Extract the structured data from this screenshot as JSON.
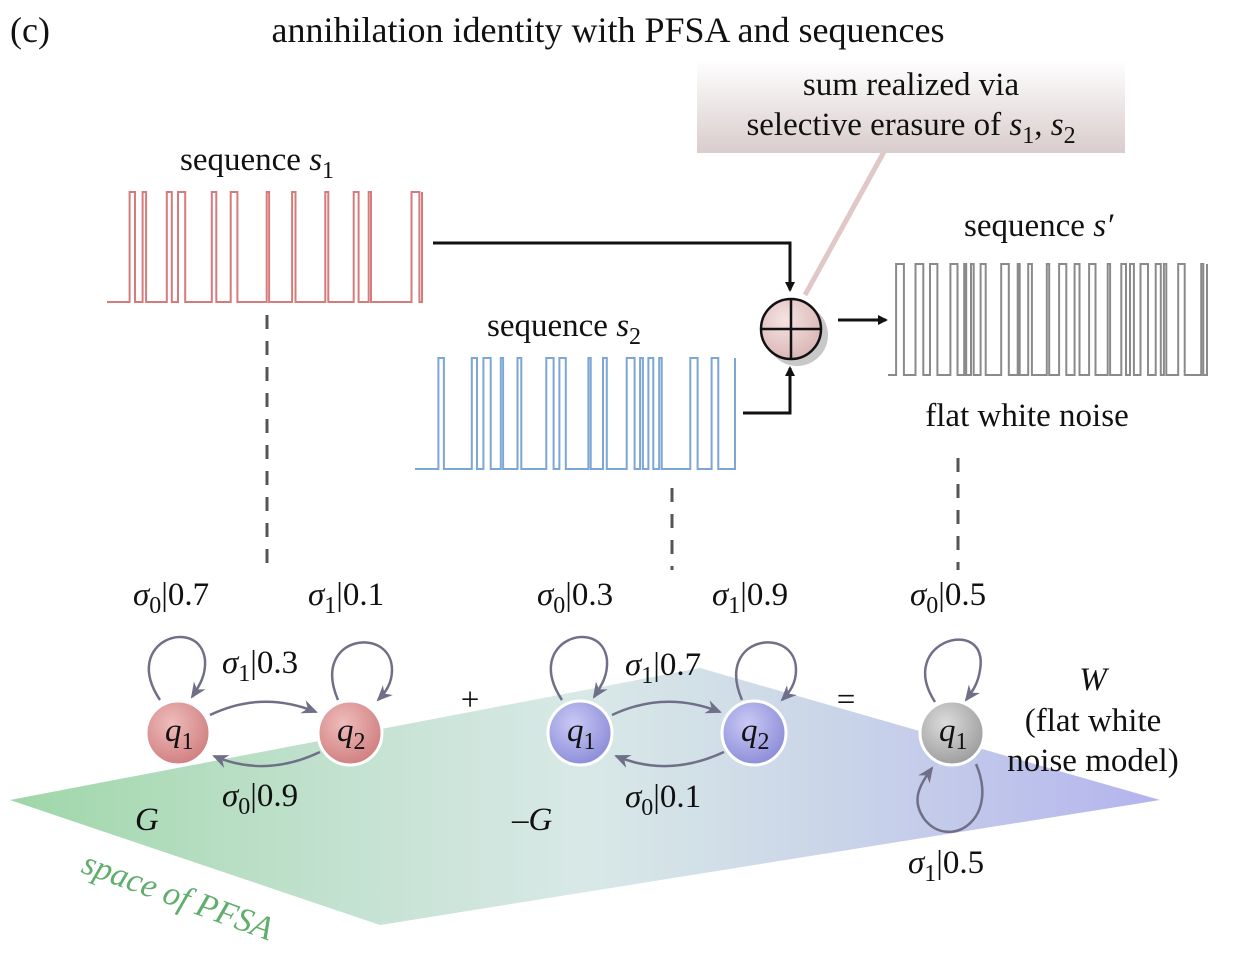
{
  "panel": {
    "label": "(c)",
    "title": "annihilation identity with PFSA and sequences"
  },
  "callout": {
    "line1": "sum realized via",
    "line2_prefix": "selective erasure of ",
    "var_a": "s",
    "var_a_sub": "1",
    "sep": ", ",
    "var_b": "s",
    "var_b_sub": "2"
  },
  "sequences": {
    "s1": {
      "prefix": "sequence ",
      "var": "s",
      "sub": "1",
      "color": "#d67b7b"
    },
    "s2": {
      "prefix": "sequence ",
      "var": "s",
      "sub": "2",
      "color": "#7ba6d6"
    },
    "sprime": {
      "prefix": "sequence ",
      "var": "s′",
      "color": "#8a8a8a",
      "caption": "flat white noise"
    }
  },
  "operators": {
    "plus": "+",
    "equals": "="
  },
  "pfsa": {
    "G": {
      "name": "G",
      "state_color": "#d98e8e",
      "states": [
        {
          "var": "q",
          "sub": "1"
        },
        {
          "var": "q",
          "sub": "2"
        }
      ],
      "loop_q1": {
        "sym": "σ",
        "sub": "0",
        "p": "|0.7"
      },
      "loop_q2": {
        "sym": "σ",
        "sub": "1",
        "p": "|0.1"
      },
      "edge_q1_q2": {
        "sym": "σ",
        "sub": "1",
        "p": "|0.3"
      },
      "edge_q2_q1": {
        "sym": "σ",
        "sub": "0",
        "p": "|0.9"
      }
    },
    "negG": {
      "name": "–G",
      "state_color": "#9b9be0",
      "states": [
        {
          "var": "q",
          "sub": "1"
        },
        {
          "var": "q",
          "sub": "2"
        }
      ],
      "loop_q1": {
        "sym": "σ",
        "sub": "0",
        "p": "|0.3"
      },
      "loop_q2": {
        "sym": "σ",
        "sub": "1",
        "p": "|0.9"
      },
      "edge_q1_q2": {
        "sym": "σ",
        "sub": "1",
        "p": "|0.7"
      },
      "edge_q2_q1": {
        "sym": "σ",
        "sub": "0",
        "p": "|0.1"
      }
    },
    "W": {
      "name": "W",
      "desc_line1": "(flat white",
      "desc_line2": "noise model)",
      "state_color": "#a8a8a8",
      "state": {
        "var": "q",
        "sub": "1"
      },
      "loop_top": {
        "sym": "σ",
        "sub": "0",
        "p": "|0.5"
      },
      "loop_bottom": {
        "sym": "σ",
        "sub": "1",
        "p": "|0.5"
      }
    }
  },
  "plane": {
    "label": "space of PFSA",
    "color_left": "#7ec98a",
    "color_right": "#9a9ae8"
  }
}
